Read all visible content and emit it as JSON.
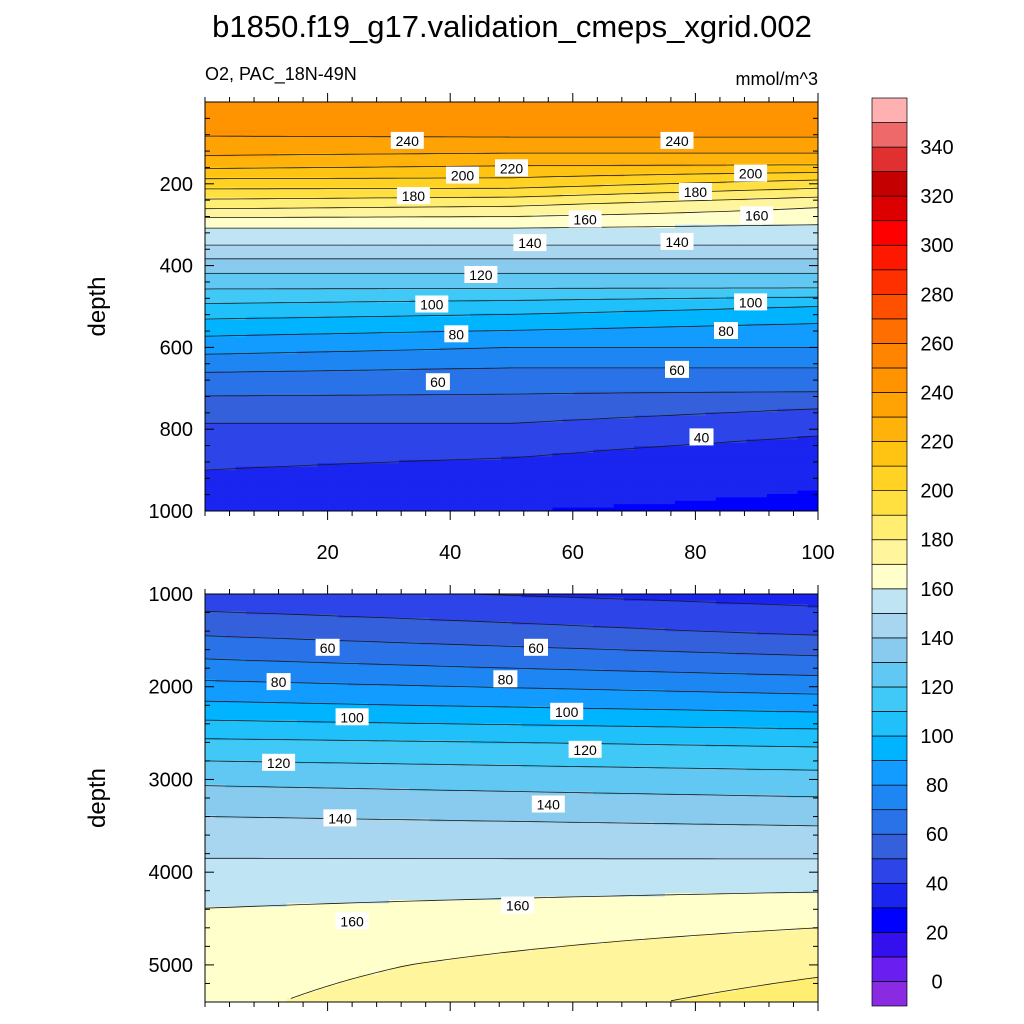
{
  "figure": {
    "title": "b1850.f19_g17.validation_cmeps_xgrid.002",
    "left_subtitle": "O2, PAC_18N-49N",
    "right_subtitle": "mmol/m^3"
  },
  "chart_data": [
    {
      "type": "heatmap",
      "subtype": "filled-contour",
      "panel": "upper",
      "variable": "O2",
      "region": "PAC_18N-49N",
      "units": "mmol/m^3",
      "ylabel": "depth",
      "xlabel": "",
      "xlim": [
        0,
        100
      ],
      "ylim": [
        1000,
        0
      ],
      "y_reversed": true,
      "x_ticks": [
        20,
        40,
        60,
        80,
        100
      ],
      "y_ticks": [
        200,
        400,
        600,
        800,
        1000
      ],
      "contour_levels_drawn": [
        40,
        50,
        60,
        70,
        80,
        90,
        100,
        110,
        120,
        130,
        140,
        150,
        160,
        170,
        180,
        190,
        200,
        210,
        220,
        230,
        240
      ],
      "depth_profile_depths": [
        0,
        50,
        100,
        150,
        200,
        250,
        300,
        350,
        400,
        450,
        500,
        550,
        600,
        650,
        700,
        750,
        800,
        850,
        900,
        950,
        1000
      ],
      "depth_profile_at_x": [
        {
          "x": 0,
          "values": [
            250,
            244,
            238,
            225,
            205,
            185,
            162,
            150,
            135,
            122,
            108,
            95,
            84,
            72,
            63,
            55,
            48,
            44,
            40,
            38,
            36
          ]
        },
        {
          "x": 50,
          "values": [
            250,
            245,
            238,
            222,
            205,
            182,
            162,
            150,
            135,
            122,
            105,
            92,
            80,
            70,
            62,
            55,
            48,
            42,
            37,
            33,
            30
          ]
        },
        {
          "x": 100,
          "values": [
            250,
            245,
            238,
            222,
            195,
            172,
            160,
            150,
            135,
            122,
            100,
            88,
            80,
            70,
            62,
            50,
            42,
            36,
            32,
            30,
            28
          ]
        }
      ],
      "contour_labels": [
        {
          "text": "240",
          "x": 33,
          "y": 95
        },
        {
          "text": "240",
          "x": 77,
          "y": 95
        },
        {
          "text": "220",
          "x": 50,
          "y": 162
        },
        {
          "text": "200",
          "x": 42,
          "y": 180
        },
        {
          "text": "200",
          "x": 89,
          "y": 175
        },
        {
          "text": "180",
          "x": 34,
          "y": 230
        },
        {
          "text": "180",
          "x": 80,
          "y": 220
        },
        {
          "text": "160",
          "x": 62,
          "y": 287
        },
        {
          "text": "160",
          "x": 90,
          "y": 277
        },
        {
          "text": "140",
          "x": 53,
          "y": 345
        },
        {
          "text": "140",
          "x": 77,
          "y": 342
        },
        {
          "text": "120",
          "x": 45,
          "y": 423
        },
        {
          "text": "100",
          "x": 37,
          "y": 495
        },
        {
          "text": "100",
          "x": 89,
          "y": 490
        },
        {
          "text": "80",
          "x": 41,
          "y": 568
        },
        {
          "text": "80",
          "x": 85,
          "y": 560
        },
        {
          "text": "60",
          "x": 38,
          "y": 685
        },
        {
          "text": "60",
          "x": 77,
          "y": 655
        },
        {
          "text": "40",
          "x": 81,
          "y": 820
        }
      ],
      "grid": false
    },
    {
      "type": "heatmap",
      "subtype": "filled-contour",
      "panel": "lower",
      "variable": "O2",
      "region": "PAC_18N-49N",
      "units": "mmol/m^3",
      "ylabel": "depth",
      "xlabel": "",
      "xlim": [
        0,
        100
      ],
      "ylim": [
        5400,
        1000
      ],
      "y_reversed": true,
      "y_ticks": [
        1000,
        2000,
        3000,
        4000,
        5000
      ],
      "contour_levels_drawn": [
        40,
        50,
        60,
        70,
        80,
        90,
        100,
        110,
        120,
        130,
        140,
        150,
        160,
        170,
        180
      ],
      "depth_profile_depths": [
        1000,
        1400,
        1800,
        2200,
        2600,
        3000,
        3500,
        4000,
        4500,
        5000,
        5400
      ],
      "depth_profile_at_x": [
        {
          "x": 0,
          "values": [
            43,
            58,
            74,
            92,
            112,
            128,
            143,
            153,
            162,
            166,
            168
          ]
        },
        {
          "x": 100,
          "values": [
            36,
            48,
            66,
            86,
            108,
            124,
            140,
            154,
            168,
            178,
            184
          ]
        }
      ],
      "contour_labels": [
        {
          "text": "60",
          "x": 20,
          "y": 1580
        },
        {
          "text": "60",
          "x": 54,
          "y": 1580
        },
        {
          "text": "80",
          "x": 12,
          "y": 1950
        },
        {
          "text": "80",
          "x": 49,
          "y": 1920
        },
        {
          "text": "100",
          "x": 24,
          "y": 2330
        },
        {
          "text": "100",
          "x": 59,
          "y": 2270
        },
        {
          "text": "120",
          "x": 12,
          "y": 2820
        },
        {
          "text": "120",
          "x": 62,
          "y": 2680
        },
        {
          "text": "140",
          "x": 22,
          "y": 3420
        },
        {
          "text": "140",
          "x": 56,
          "y": 3270
        },
        {
          "text": "160",
          "x": 24,
          "y": 4530
        },
        {
          "text": "160",
          "x": 51,
          "y": 4360
        }
      ],
      "grid": false
    }
  ],
  "colorbar": {
    "orientation": "vertical",
    "placement": "right",
    "levels": [
      0,
      10,
      20,
      30,
      40,
      50,
      60,
      70,
      80,
      90,
      100,
      110,
      120,
      130,
      140,
      150,
      160,
      170,
      180,
      190,
      200,
      210,
      220,
      230,
      240,
      250,
      260,
      270,
      280,
      290,
      300,
      310,
      320,
      330,
      340,
      350
    ],
    "tick_labels": [
      "0",
      "20",
      "40",
      "60",
      "80",
      "100",
      "120",
      "140",
      "160",
      "180",
      "200",
      "220",
      "240",
      "260",
      "280",
      "300",
      "320",
      "340"
    ],
    "colors": [
      "#8a2be2",
      "#6a1ef0",
      "#3410ee",
      "#0000ff",
      "#1a25f0",
      "#2d45e8",
      "#3560dc",
      "#2a72e8",
      "#1e86f2",
      "#139cff",
      "#00b4ff",
      "#20c0fa",
      "#40c8f6",
      "#60c8f2",
      "#88cbee",
      "#a8d6f0",
      "#bfe4f4",
      "#ffffcc",
      "#fff59c",
      "#ffee72",
      "#ffe040",
      "#ffd223",
      "#ffc312",
      "#ffb20a",
      "#ffa204",
      "#ff9300",
      "#ff8400",
      "#ff6e00",
      "#ff5000",
      "#ff3000",
      "#ff1800",
      "#ff0000",
      "#dc0000",
      "#c40000",
      "#e03030",
      "#ee6a6a",
      "#ffb0b0"
    ]
  }
}
